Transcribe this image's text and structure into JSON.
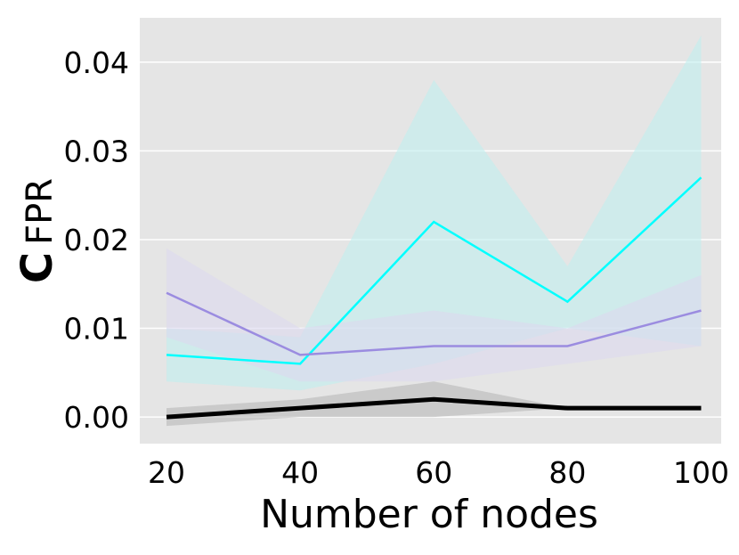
{
  "chart_data": {
    "type": "line",
    "title": "",
    "xlabel": "Number of nodes",
    "ylabel_prefix": "C",
    "ylabel": "FPR",
    "x": [
      20,
      40,
      60,
      80,
      100
    ],
    "xticks": [
      "20",
      "40",
      "60",
      "80",
      "100"
    ],
    "yticks": [
      "0.00",
      "0.01",
      "0.02",
      "0.03",
      "0.04"
    ],
    "ytick_values": [
      0,
      0.01,
      0.02,
      0.03,
      0.04
    ],
    "xlim": [
      16,
      103
    ],
    "ylim": [
      -0.003,
      0.045
    ],
    "grid": true,
    "background": "#e5e5e5",
    "series": [
      {
        "color": "#00ffff",
        "band_color": "#bfeeee",
        "linewidth": 2.5,
        "values": [
          0.007,
          0.006,
          0.022,
          0.013,
          0.027
        ],
        "lower": [
          0.004,
          0.003,
          0.006,
          0.01,
          0.008
        ],
        "upper": [
          0.01,
          0.009,
          0.038,
          0.017,
          0.043
        ]
      },
      {
        "color": "#9b8ce0",
        "band_color": "#dcd9ee",
        "linewidth": 2.5,
        "values": [
          0.014,
          0.007,
          0.008,
          0.008,
          0.012
        ],
        "lower": [
          0.009,
          0.004,
          0.004,
          0.006,
          0.008
        ],
        "upper": [
          0.019,
          0.01,
          0.012,
          0.01,
          0.016
        ]
      },
      {
        "color": "#000000",
        "band_color": "#b8b8b8",
        "linewidth": 5,
        "values": [
          0.0,
          0.001,
          0.002,
          0.001,
          0.001
        ],
        "lower": [
          -0.001,
          0.0,
          0.0,
          0.001,
          0.001
        ],
        "upper": [
          0.001,
          0.002,
          0.004,
          0.001,
          0.001
        ]
      }
    ]
  }
}
